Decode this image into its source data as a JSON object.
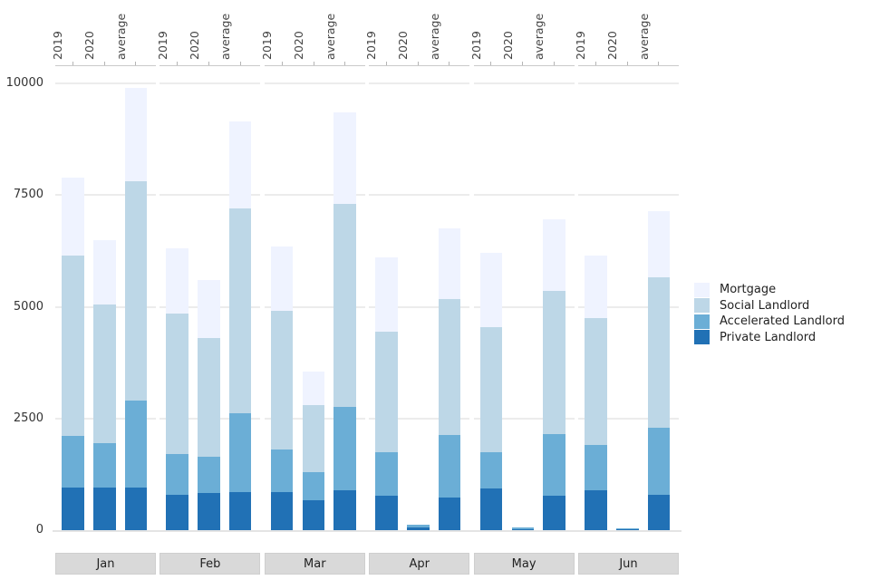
{
  "chart_data": {
    "type": "bar",
    "stacked": true,
    "title": "",
    "xlabel": "",
    "ylabel": "",
    "ylim": [
      0,
      10000
    ],
    "y_ticks": [
      0,
      2500,
      5000,
      7500,
      10000
    ],
    "grid": "horizontal",
    "legend_position": "right",
    "months": [
      "Jan",
      "Feb",
      "Mar",
      "Apr",
      "May",
      "Jun"
    ],
    "bar_labels": [
      "2019",
      "2020",
      "average"
    ],
    "legend": [
      {
        "label": "Mortgage",
        "color": "#eff3ff"
      },
      {
        "label": "Social Landlord",
        "color": "#bdd7e7"
      },
      {
        "label": "Accelerated Landlord",
        "color": "#6baed6"
      },
      {
        "label": "Private Landlord",
        "color": "#2171b5"
      }
    ],
    "stack_order_bottom_to_top": [
      "Private Landlord",
      "Accelerated Landlord",
      "Social Landlord",
      "Mortgage"
    ],
    "values": {
      "Jan": {
        "2019": {
          "Private Landlord": 950,
          "Accelerated Landlord": 1150,
          "Social Landlord": 4050,
          "Mortgage": 1750
        },
        "2020": {
          "Private Landlord": 950,
          "Accelerated Landlord": 1000,
          "Social Landlord": 3100,
          "Mortgage": 1450
        },
        "average": {
          "Private Landlord": 950,
          "Accelerated Landlord": 1950,
          "Social Landlord": 4900,
          "Mortgage": 2100
        }
      },
      "Feb": {
        "2019": {
          "Private Landlord": 800,
          "Accelerated Landlord": 900,
          "Social Landlord": 3150,
          "Mortgage": 1450
        },
        "2020": {
          "Private Landlord": 825,
          "Accelerated Landlord": 825,
          "Social Landlord": 2650,
          "Mortgage": 1300
        },
        "average": {
          "Private Landlord": 850,
          "Accelerated Landlord": 1775,
          "Social Landlord": 4575,
          "Mortgage": 1950
        }
      },
      "Mar": {
        "2019": {
          "Private Landlord": 850,
          "Accelerated Landlord": 950,
          "Social Landlord": 3100,
          "Mortgage": 1450
        },
        "2020": {
          "Private Landlord": 675,
          "Accelerated Landlord": 625,
          "Social Landlord": 1500,
          "Mortgage": 750
        },
        "average": {
          "Private Landlord": 900,
          "Accelerated Landlord": 1850,
          "Social Landlord": 4550,
          "Mortgage": 2050
        }
      },
      "Apr": {
        "2019": {
          "Private Landlord": 775,
          "Accelerated Landlord": 975,
          "Social Landlord": 2700,
          "Mortgage": 1650
        },
        "2020": {
          "Private Landlord": 60,
          "Accelerated Landlord": 60,
          "Social Landlord": 0,
          "Mortgage": 0
        },
        "average": {
          "Private Landlord": 725,
          "Accelerated Landlord": 1400,
          "Social Landlord": 3050,
          "Mortgage": 1575
        }
      },
      "May": {
        "2019": {
          "Private Landlord": 925,
          "Accelerated Landlord": 825,
          "Social Landlord": 2800,
          "Mortgage": 1650
        },
        "2020": {
          "Private Landlord": 30,
          "Accelerated Landlord": 30,
          "Social Landlord": 0,
          "Mortgage": 0
        },
        "average": {
          "Private Landlord": 775,
          "Accelerated Landlord": 1375,
          "Social Landlord": 3200,
          "Mortgage": 1600
        }
      },
      "Jun": {
        "2019": {
          "Private Landlord": 900,
          "Accelerated Landlord": 1000,
          "Social Landlord": 2850,
          "Mortgage": 1400
        },
        "2020": {
          "Private Landlord": 25,
          "Accelerated Landlord": 25,
          "Social Landlord": 0,
          "Mortgage": 0
        },
        "average": {
          "Private Landlord": 800,
          "Accelerated Landlord": 1500,
          "Social Landlord": 3350,
          "Mortgage": 1500
        }
      }
    }
  }
}
